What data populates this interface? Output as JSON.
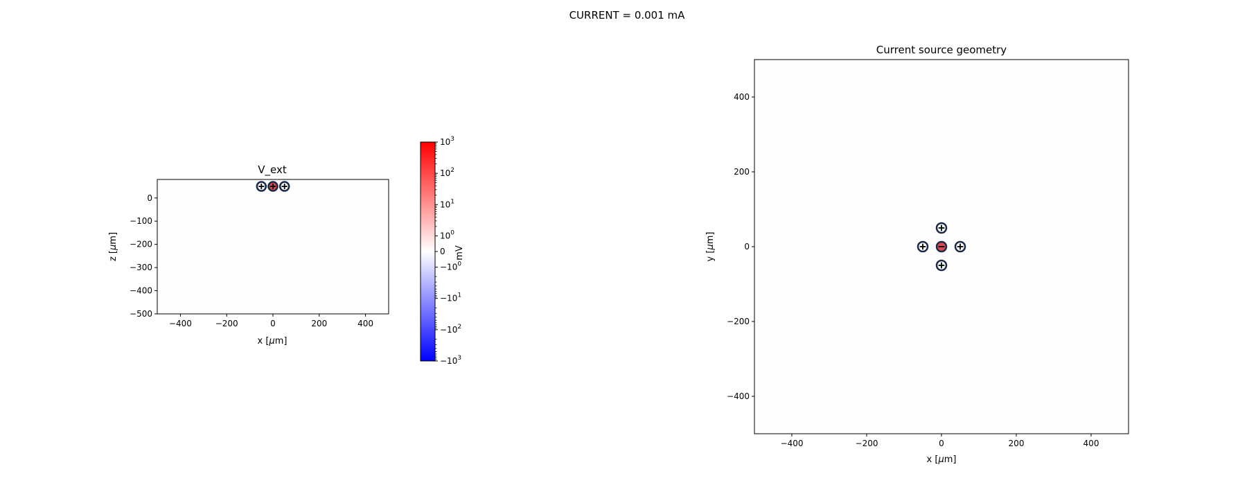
{
  "suptitle": "CURRENT = 0.001 mA",
  "colors": {
    "positive_max": "#ff0000",
    "negative_max": "#0000ff",
    "zero": "#ffffff",
    "source_negative_fill": "#d94a4a",
    "source_positive_fill": "#ffffff",
    "source_edge": "#000000",
    "source_ring": "#1a2a4a"
  },
  "chart_data": [
    {
      "type": "heatmap",
      "title": "V_ext",
      "xlabel": "x [$\\mu$m]",
      "ylabel": "z [$\\mu$m]",
      "xlim": [
        -500,
        500
      ],
      "ylim": [
        -500,
        80
      ],
      "xticks": [
        -400,
        -200,
        0,
        200,
        400
      ],
      "xtick_labels": [
        "−400",
        "−200",
        "0",
        "200",
        "400"
      ],
      "yticks": [
        0,
        -100,
        -200,
        -300,
        -400,
        -500
      ],
      "ytick_labels": [
        "0",
        "−100",
        "−200",
        "−300",
        "−400",
        "−500"
      ],
      "sources": [
        {
          "x": -50,
          "z": 50,
          "sign": "+"
        },
        {
          "x": 0,
          "z": 50,
          "sign": "+",
          "center": true
        },
        {
          "x": 50,
          "z": 50,
          "sign": "+"
        }
      ],
      "colorbar": {
        "label": "mV",
        "scale": "symlog",
        "range": [
          -1000,
          1000
        ],
        "ticks": [
          {
            "value": 1000,
            "base": "10",
            "exp": "3"
          },
          {
            "value": 100,
            "base": "10",
            "exp": "2"
          },
          {
            "value": 10,
            "base": "10",
            "exp": "1"
          },
          {
            "value": 1,
            "base": "10",
            "exp": "0"
          },
          {
            "value": 0,
            "base": "0",
            "exp": ""
          },
          {
            "value": -1,
            "base": "−10",
            "exp": "0"
          },
          {
            "value": -10,
            "base": "−10",
            "exp": "1"
          },
          {
            "value": -100,
            "base": "−10",
            "exp": "2"
          },
          {
            "value": -1000,
            "base": "−10",
            "exp": "3"
          }
        ]
      }
    },
    {
      "type": "scatter",
      "title": "Current source geometry",
      "xlabel": "x [$\\mu$m]",
      "ylabel": "y [$\\mu$m]",
      "xlim": [
        -500,
        500
      ],
      "ylim": [
        -500,
        500
      ],
      "xticks": [
        -400,
        -200,
        0,
        200,
        400
      ],
      "xtick_labels": [
        "−400",
        "−200",
        "0",
        "200",
        "400"
      ],
      "yticks": [
        400,
        200,
        0,
        -200,
        -400
      ],
      "ytick_labels": [
        "400",
        "200",
        "0",
        "−200",
        "−400"
      ],
      "sources": [
        {
          "x": 0,
          "y": 50,
          "sign": "+"
        },
        {
          "x": -50,
          "y": 0,
          "sign": "+"
        },
        {
          "x": 0,
          "y": 0,
          "sign": "−"
        },
        {
          "x": 50,
          "y": 0,
          "sign": "+"
        },
        {
          "x": 0,
          "y": -50,
          "sign": "+"
        }
      ]
    }
  ]
}
